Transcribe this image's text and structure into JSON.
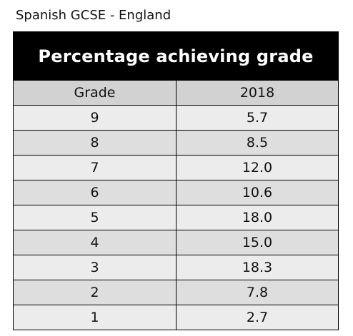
{
  "caption": "Spanish GCSE - England",
  "chart_data": {
    "type": "table",
    "title": "Percentage achieving grade",
    "columns": [
      "Grade",
      "2018"
    ],
    "rows": [
      {
        "grade": "9",
        "value": "5.7"
      },
      {
        "grade": "8",
        "value": "8.5"
      },
      {
        "grade": "7",
        "value": "12.0"
      },
      {
        "grade": "6",
        "value": "10.6"
      },
      {
        "grade": "5",
        "value": "18.0"
      },
      {
        "grade": "4",
        "value": "15.0"
      },
      {
        "grade": "3",
        "value": "18.3"
      },
      {
        "grade": "2",
        "value": "7.8"
      },
      {
        "grade": "1",
        "value": "2.7"
      }
    ]
  }
}
